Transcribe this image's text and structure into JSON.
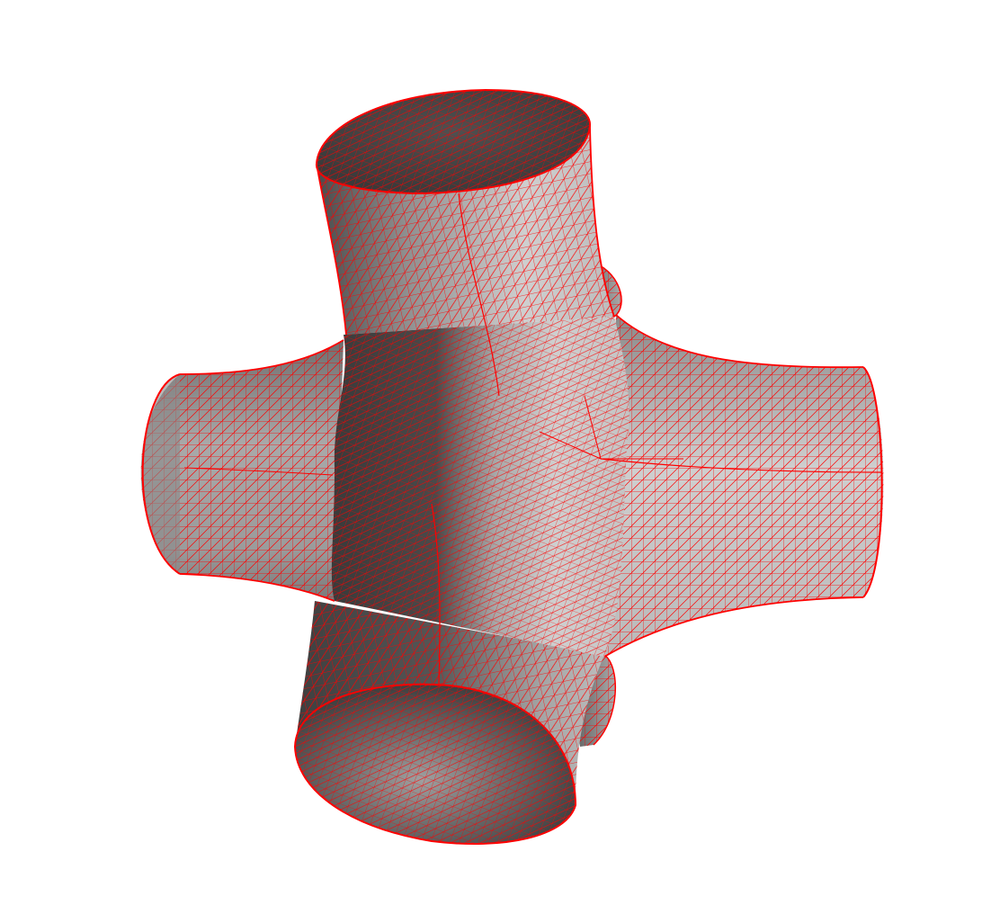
{
  "scene": {
    "background_color": "#ffffff",
    "wire_color": "#ff0000",
    "shade_dark": "#3a3a3a",
    "shade_mid": "#9a9a9a",
    "shade_light": "#d2d2d2",
    "rim_inner": "#454545",
    "parts": [
      "tube-top",
      "tube-bottom",
      "tube-left",
      "tube-right",
      "tube-back-top",
      "tube-back-bottom",
      "central-junction"
    ]
  }
}
